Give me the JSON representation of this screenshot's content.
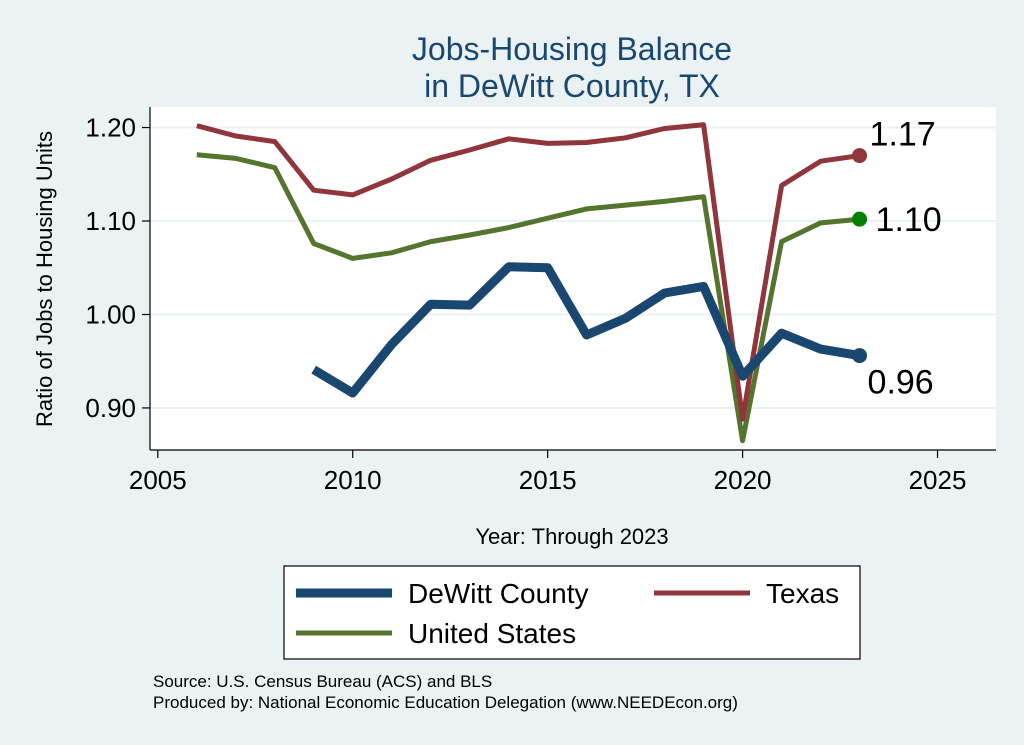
{
  "chart_data": {
    "type": "line",
    "title": [
      "Jobs-Housing Balance",
      "in DeWitt County, TX"
    ],
    "xlabel": "Year: Through 2023",
    "ylabel": "Ratio of Jobs to Housing Units",
    "xlim": [
      2004.8,
      2026.5
    ],
    "ylim": [
      0.855,
      1.222
    ],
    "xticks": [
      2005,
      2010,
      2015,
      2020,
      2025
    ],
    "yticks": [
      0.9,
      1.0,
      1.1,
      1.2
    ],
    "ytick_labels": [
      "0.90",
      "1.00",
      "1.10",
      "1.20"
    ],
    "grid": true,
    "legend_position": "bottom",
    "series": [
      {
        "name": "DeWitt County",
        "color": "#1a476f",
        "x": [
          2009,
          2010,
          2011,
          2012,
          2013,
          2014,
          2015,
          2016,
          2017,
          2018,
          2019,
          2020,
          2021,
          2022,
          2023
        ],
        "values": [
          0.941,
          0.916,
          0.968,
          1.011,
          1.01,
          1.051,
          1.05,
          0.978,
          0.996,
          1.023,
          1.03,
          0.934,
          0.98,
          0.963,
          0.956
        ],
        "end_label": "0.96"
      },
      {
        "name": "Texas",
        "color": "#90353b",
        "x": [
          2006,
          2007,
          2008,
          2009,
          2010,
          2011,
          2012,
          2013,
          2014,
          2015,
          2016,
          2017,
          2018,
          2019,
          2020,
          2021,
          2022,
          2023
        ],
        "values": [
          1.202,
          1.191,
          1.185,
          1.133,
          1.128,
          1.145,
          1.165,
          1.176,
          1.188,
          1.183,
          1.184,
          1.189,
          1.199,
          1.203,
          0.888,
          1.138,
          1.164,
          1.17
        ],
        "end_label": "1.17"
      },
      {
        "name": "United States",
        "color": "#55752f",
        "x": [
          2006,
          2007,
          2008,
          2009,
          2010,
          2011,
          2012,
          2013,
          2014,
          2015,
          2016,
          2017,
          2018,
          2019,
          2020,
          2021,
          2022,
          2023
        ],
        "values": [
          1.171,
          1.167,
          1.157,
          1.076,
          1.06,
          1.066,
          1.078,
          1.085,
          1.093,
          1.103,
          1.113,
          1.117,
          1.121,
          1.126,
          0.865,
          1.078,
          1.098,
          1.102
        ],
        "end_label": "1.10"
      }
    ],
    "end_marker_colors": [
      "#1a476f",
      "#90353b",
      "#008000"
    ]
  },
  "source": {
    "line1": "Source: U.S. Census Bureau (ACS) and BLS",
    "line2": "Produced by: National Economic Education Delegation (www.NEEDEcon.org)"
  }
}
